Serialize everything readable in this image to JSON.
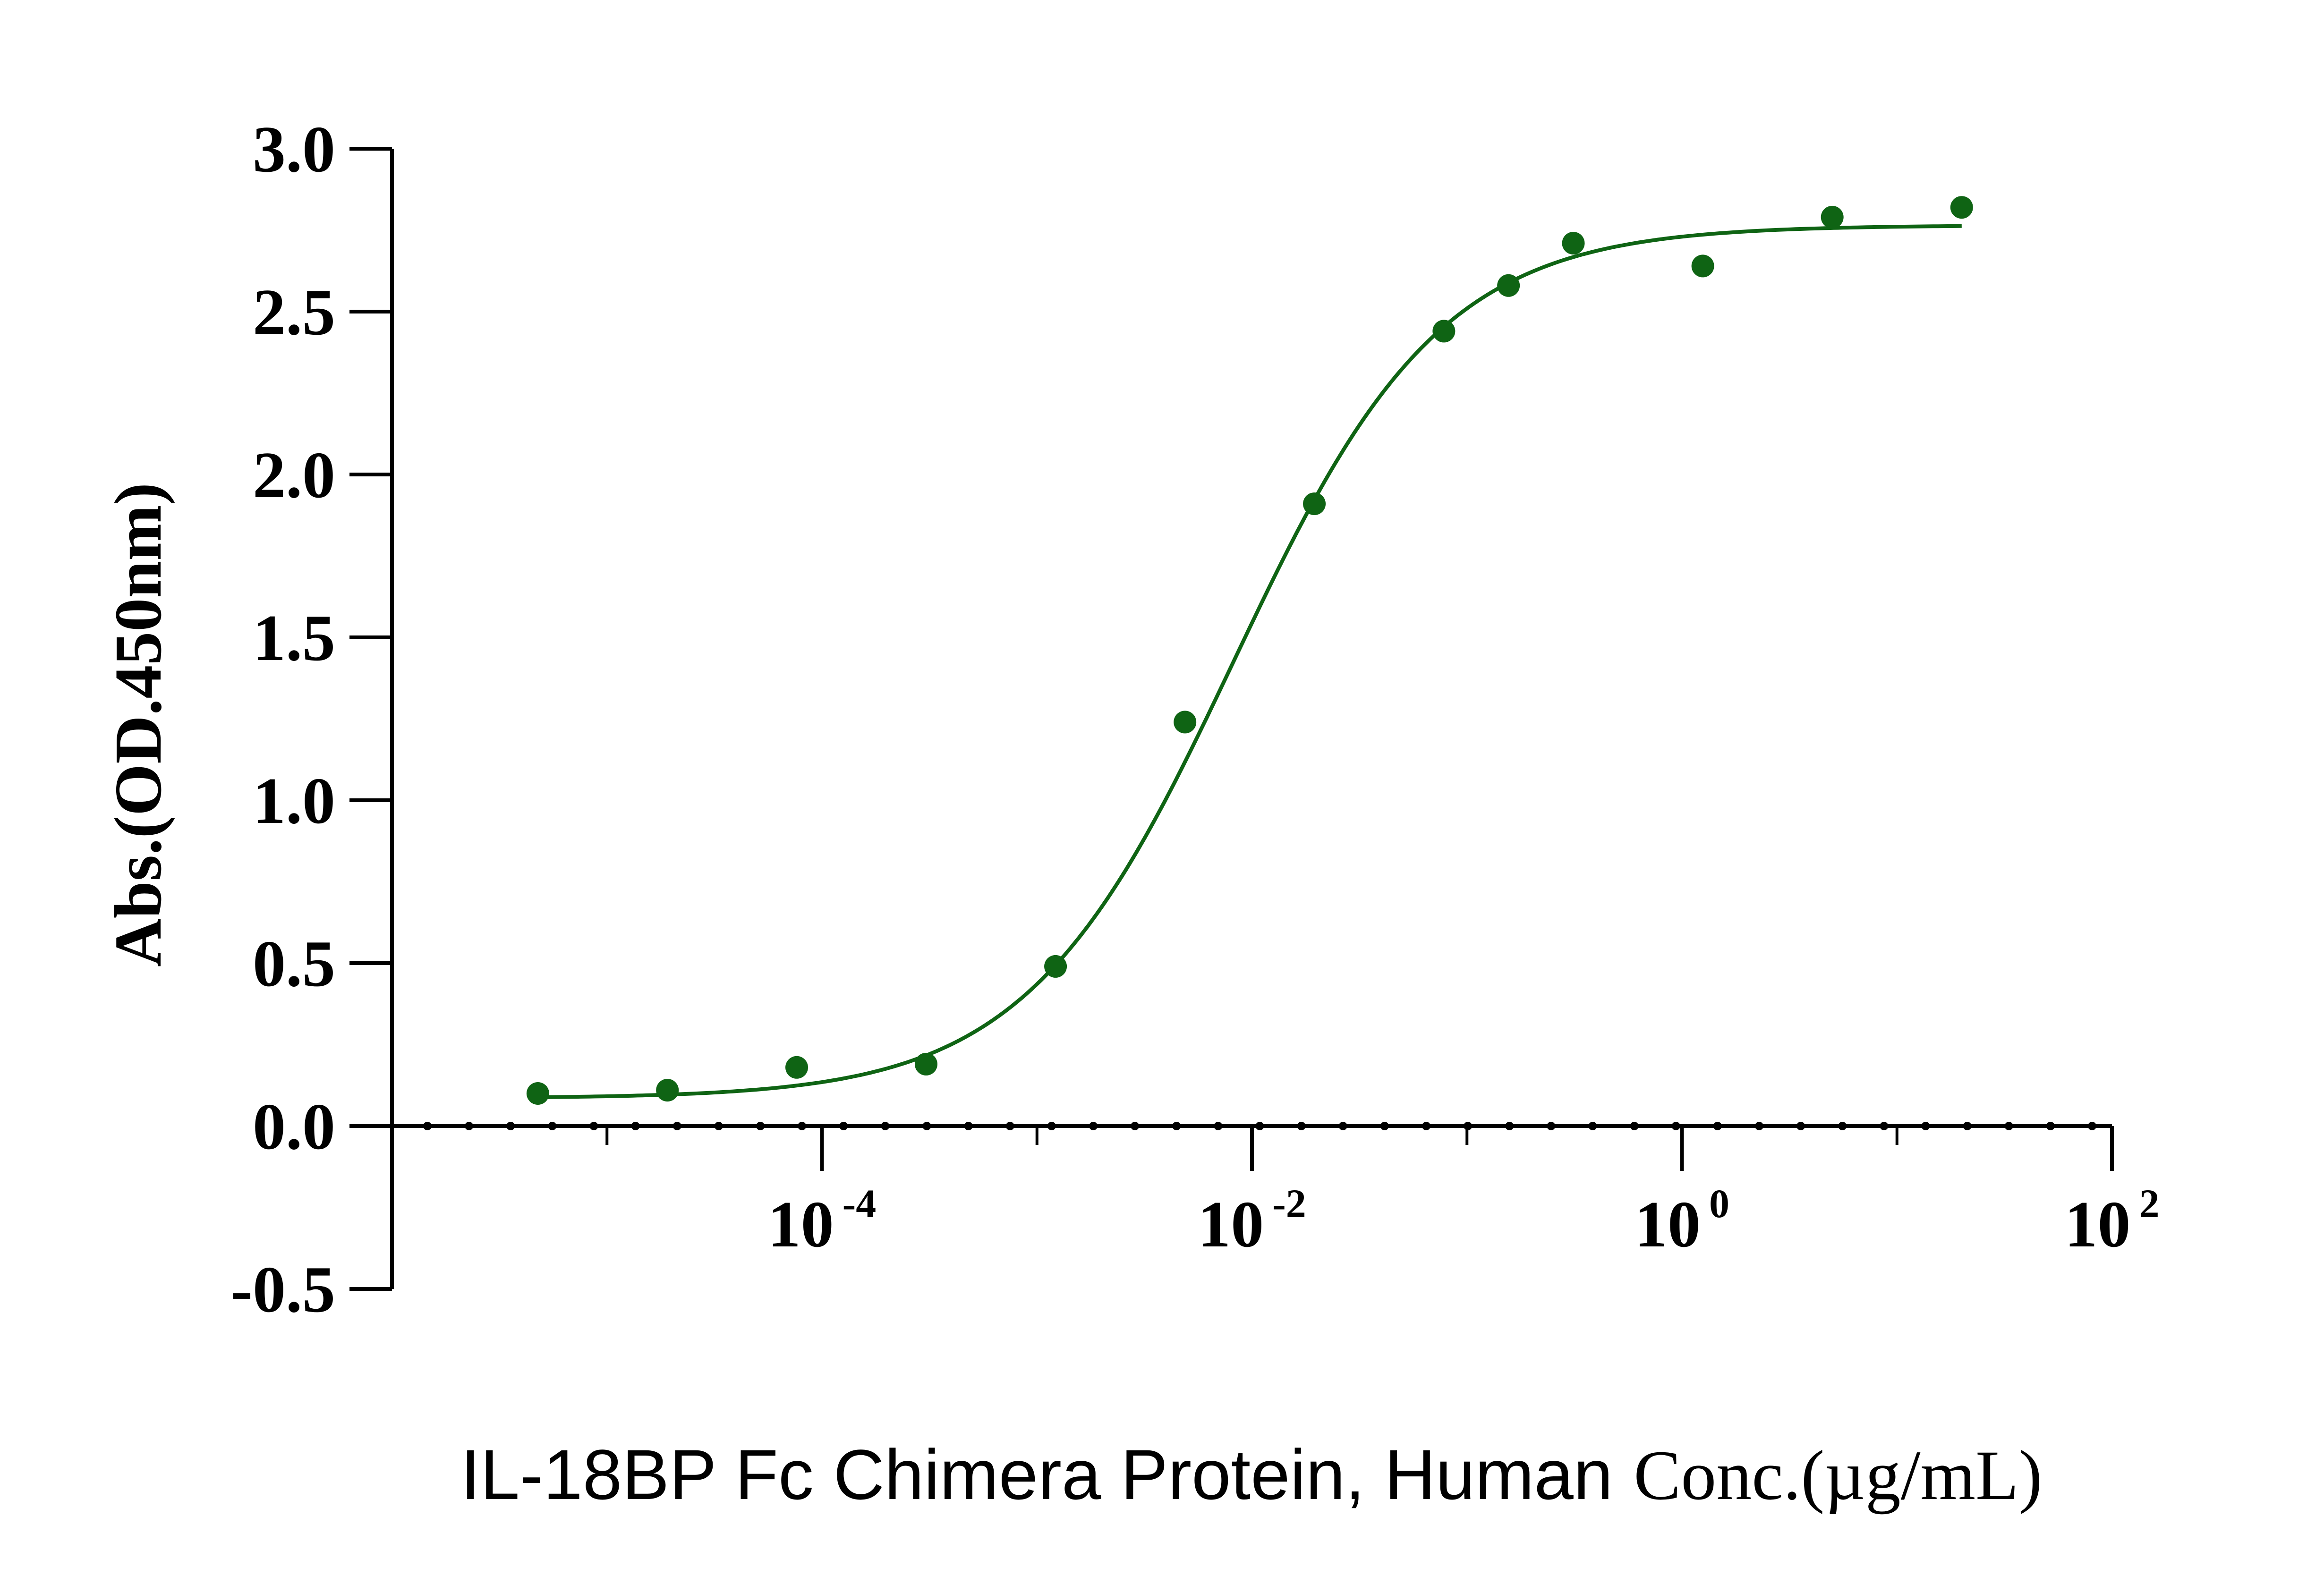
{
  "chart_data": {
    "type": "scatter",
    "xscale": "log",
    "xlim": [
      1e-06,
      100
    ],
    "ylim": [
      -0.5,
      3.0
    ],
    "yticks": [
      "3.0",
      "2.5",
      "2.0",
      "1.5",
      "1.0",
      "0.5",
      "0.0",
      "-0.5"
    ],
    "yticks_values": [
      3.0,
      2.5,
      2.0,
      1.5,
      1.0,
      0.5,
      0.0,
      -0.5
    ],
    "xticks": [
      {
        "value": 0.0001,
        "base": "10",
        "exp": "-4"
      },
      {
        "value": 0.01,
        "base": "10",
        "exp": "-2"
      },
      {
        "value": 1,
        "base": "10",
        "exp": "0"
      },
      {
        "value": 100,
        "base": "10",
        "exp": "2"
      }
    ],
    "ylabel": "Abs.(OD.450nm)",
    "xlabel_part1": "IL-18BP Fc Chimera Protein, Human",
    "xlabel_part2": "Conc.(µg/mL)",
    "color": "#0f6414",
    "series": [
      {
        "x": [
          4.77e-06,
          1.91e-05,
          7.63e-05,
          0.000305,
          0.00122,
          0.00488,
          0.0195,
          0.0781,
          0.156,
          0.3125,
          1.25,
          5,
          20
        ],
        "y": [
          0.1,
          0.11,
          0.18,
          0.19,
          0.49,
          1.24,
          1.91,
          2.44,
          2.58,
          2.71,
          2.64,
          2.79,
          2.82
        ]
      }
    ],
    "fit": {
      "bottom": 0.085,
      "top": 2.765,
      "ec50": 0.0082,
      "hill": 0.9,
      "x_range": [
        4.77e-06,
        20
      ]
    }
  }
}
